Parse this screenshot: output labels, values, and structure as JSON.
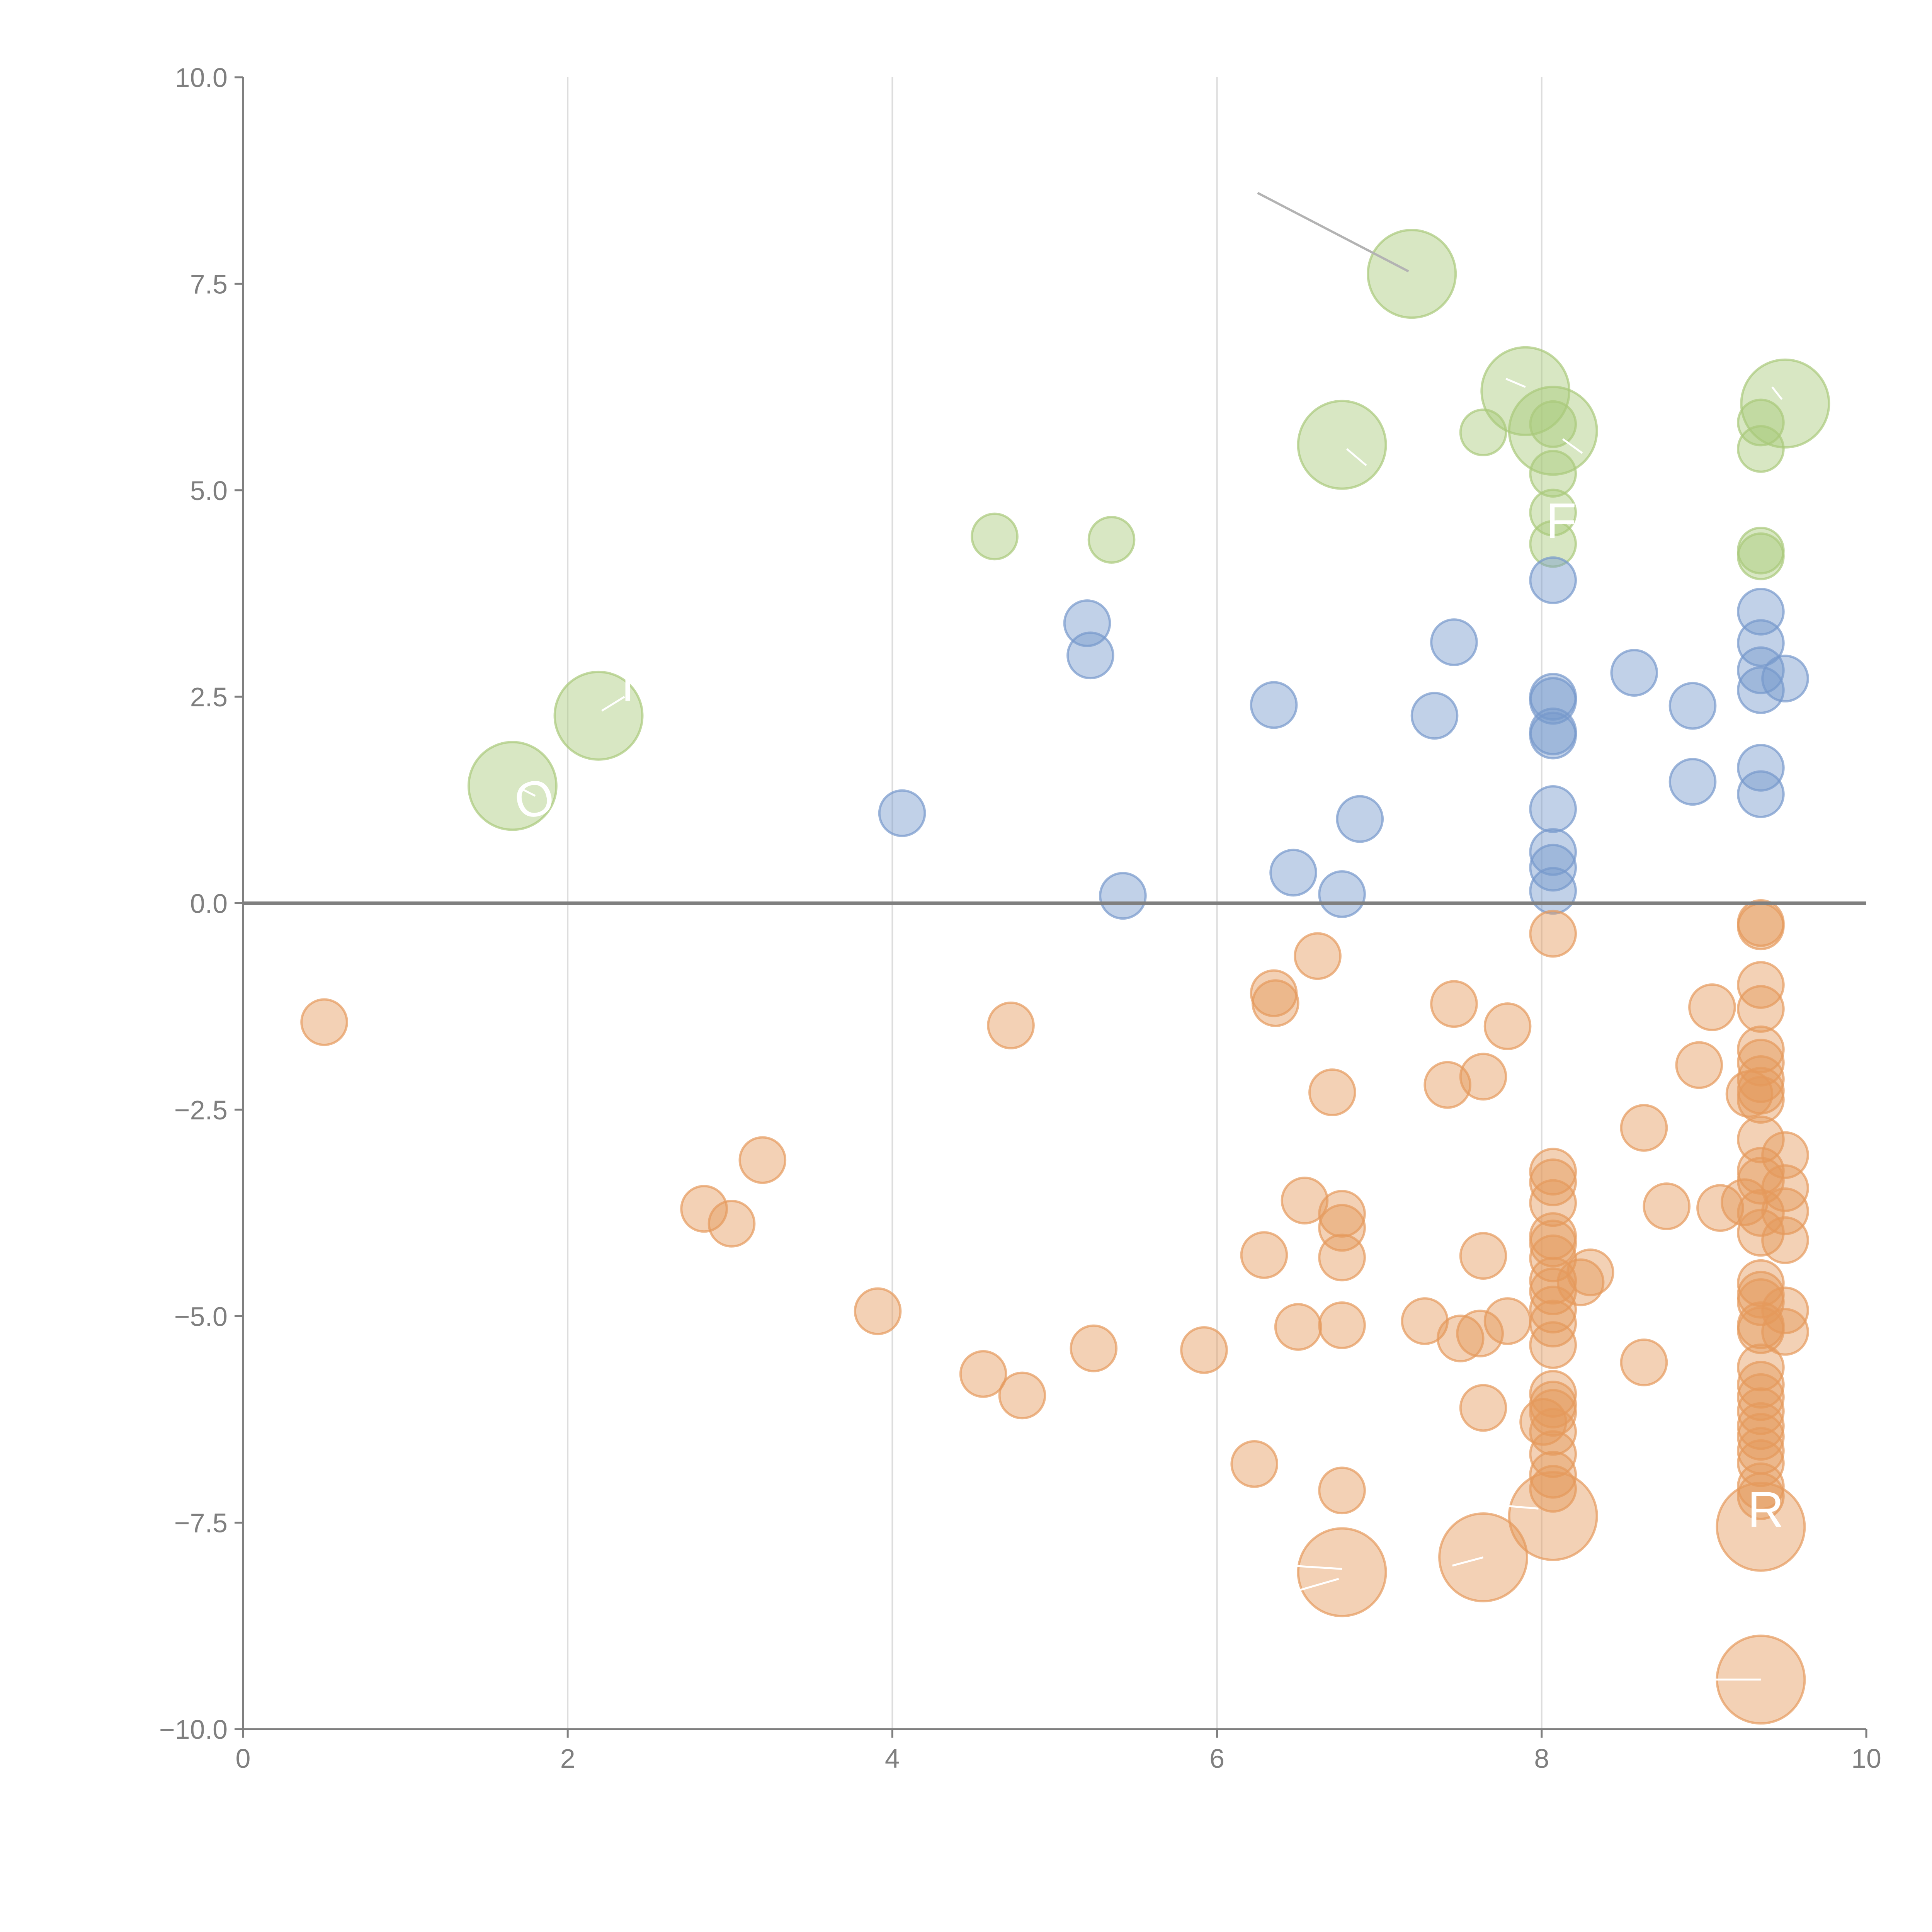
{
  "chart_data": {
    "type": "scatter",
    "title": "",
    "xlabel": "",
    "ylabel": "",
    "xlim": [
      0,
      10
    ],
    "ylim": [
      -10,
      10
    ],
    "grid": "vertical",
    "x_ticks": [
      0,
      2,
      4,
      6,
      8,
      10
    ],
    "x_tick_labels": [
      "0",
      "2",
      "4",
      "6",
      "8",
      "10"
    ],
    "y_ticks": [
      10,
      7.5,
      5,
      2.5,
      0,
      -2.5,
      -5,
      -7.5,
      -10
    ],
    "y_tick_labels": [
      "10.0",
      "7.5",
      "5.0",
      "2.5",
      "0.0",
      "−2.5",
      "−5.0",
      "−7.5",
      "−10.0"
    ],
    "colors": {
      "green": "#a9c97a",
      "blue": "#7699cc",
      "orange": "#e59a5c"
    },
    "series": [
      {
        "name": "green",
        "color": "#a9c97a",
        "points": [
          [
            1.66,
            1.42,
            0.27
          ],
          [
            2.19,
            2.27,
            0.27
          ],
          [
            7.2,
            7.62,
            0.27
          ],
          [
            7.9,
            6.2,
            0.27
          ],
          [
            8.07,
            5.72,
            0.27
          ],
          [
            6.77,
            5.55,
            0.27
          ],
          [
            9.5,
            6.05,
            0.27
          ],
          [
            4.63,
            4.44,
            0.14
          ],
          [
            5.35,
            4.4,
            0.14
          ],
          [
            7.64,
            5.7,
            0.14
          ],
          [
            8.07,
            5.8,
            0.14
          ],
          [
            8.07,
            5.2,
            0.14
          ],
          [
            8.07,
            4.73,
            0.14
          ],
          [
            8.07,
            4.35,
            0.14
          ],
          [
            9.35,
            5.82,
            0.14
          ],
          [
            9.35,
            5.5,
            0.14
          ],
          [
            9.35,
            4.27,
            0.14
          ],
          [
            9.35,
            4.2,
            0.14
          ]
        ]
      },
      {
        "name": "blue",
        "color": "#7699cc",
        "points": [
          [
            4.06,
            1.09,
            0.14
          ],
          [
            5.2,
            3.39,
            0.14
          ],
          [
            5.22,
            3.0,
            0.14
          ],
          [
            5.42,
            0.09,
            0.14
          ],
          [
            6.35,
            2.4,
            0.14
          ],
          [
            6.47,
            0.37,
            0.14
          ],
          [
            6.77,
            0.11,
            0.14
          ],
          [
            6.88,
            1.02,
            0.14
          ],
          [
            7.34,
            2.27,
            0.14
          ],
          [
            7.46,
            3.16,
            0.14
          ],
          [
            8.07,
            3.91,
            0.14
          ],
          [
            8.07,
            2.5,
            0.14
          ],
          [
            8.07,
            2.45,
            0.14
          ],
          [
            8.07,
            2.08,
            0.14
          ],
          [
            8.07,
            2.03,
            0.14
          ],
          [
            8.07,
            1.14,
            0.14
          ],
          [
            8.07,
            0.62,
            0.14
          ],
          [
            8.07,
            0.43,
            0.14
          ],
          [
            8.07,
            0.15,
            0.14
          ],
          [
            8.57,
            2.79,
            0.14
          ],
          [
            8.93,
            2.39,
            0.14
          ],
          [
            8.93,
            1.47,
            0.14
          ],
          [
            9.35,
            3.53,
            0.14
          ],
          [
            9.35,
            3.15,
            0.14
          ],
          [
            9.35,
            2.82,
            0.14
          ],
          [
            9.35,
            2.58,
            0.14
          ],
          [
            9.35,
            1.64,
            0.14
          ],
          [
            9.35,
            1.32,
            0.14
          ],
          [
            9.5,
            2.72,
            0.14
          ]
        ]
      },
      {
        "name": "orange",
        "color": "#e59a5c",
        "points": [
          [
            0.5,
            -1.44,
            0.14
          ],
          [
            2.84,
            -3.7,
            0.14
          ],
          [
            3.01,
            -3.88,
            0.14
          ],
          [
            3.2,
            -3.11,
            0.14
          ],
          [
            3.91,
            -4.94,
            0.14
          ],
          [
            4.56,
            -5.7,
            0.14
          ],
          [
            4.73,
            -1.48,
            0.14
          ],
          [
            4.8,
            -5.96,
            0.14
          ],
          [
            5.24,
            -5.39,
            0.14
          ],
          [
            5.92,
            -5.41,
            0.14
          ],
          [
            6.23,
            -6.79,
            0.14
          ],
          [
            6.29,
            -4.26,
            0.14
          ],
          [
            6.35,
            -1.09,
            0.14
          ],
          [
            6.36,
            -1.21,
            0.14
          ],
          [
            6.5,
            -5.13,
            0.14
          ],
          [
            6.54,
            -3.6,
            0.14
          ],
          [
            6.62,
            -0.64,
            0.14
          ],
          [
            6.71,
            -2.29,
            0.14
          ],
          [
            6.77,
            -3.76,
            0.14
          ],
          [
            6.77,
            -3.93,
            0.14
          ],
          [
            6.77,
            -4.29,
            0.14
          ],
          [
            6.77,
            -5.11,
            0.14
          ],
          [
            6.77,
            -7.11,
            0.14
          ],
          [
            6.77,
            -8.1,
            0.27
          ],
          [
            7.28,
            -5.06,
            0.14
          ],
          [
            7.42,
            -2.2,
            0.14
          ],
          [
            7.46,
            -1.22,
            0.14
          ],
          [
            7.5,
            -5.27,
            0.14
          ],
          [
            7.62,
            -5.21,
            0.14
          ],
          [
            7.64,
            -2.1,
            0.14
          ],
          [
            7.64,
            -4.27,
            0.14
          ],
          [
            7.64,
            -6.11,
            0.14
          ],
          [
            7.64,
            -7.92,
            0.27
          ],
          [
            7.79,
            -5.06,
            0.14
          ],
          [
            7.79,
            -1.49,
            0.14
          ],
          [
            8.01,
            -6.28,
            0.14
          ],
          [
            8.07,
            -0.37,
            0.14
          ],
          [
            8.07,
            -3.25,
            0.14
          ],
          [
            8.07,
            -3.38,
            0.14
          ],
          [
            8.07,
            -3.63,
            0.14
          ],
          [
            8.07,
            -4.03,
            0.14
          ],
          [
            8.07,
            -4.12,
            0.14
          ],
          [
            8.07,
            -4.3,
            0.14
          ],
          [
            8.07,
            -4.57,
            0.14
          ],
          [
            8.07,
            -4.7,
            0.14
          ],
          [
            8.07,
            -4.92,
            0.14
          ],
          [
            8.07,
            -5.09,
            0.14
          ],
          [
            8.07,
            -5.35,
            0.14
          ],
          [
            8.07,
            -5.94,
            0.14
          ],
          [
            8.07,
            -6.07,
            0.14
          ],
          [
            8.07,
            -6.17,
            0.14
          ],
          [
            8.07,
            -6.4,
            0.14
          ],
          [
            8.07,
            -6.67,
            0.14
          ],
          [
            8.07,
            -6.92,
            0.14
          ],
          [
            8.07,
            -7.09,
            0.14
          ],
          [
            8.07,
            -7.42,
            0.27
          ],
          [
            8.24,
            -4.59,
            0.14
          ],
          [
            8.3,
            -4.47,
            0.14
          ],
          [
            8.63,
            -2.72,
            0.14
          ],
          [
            8.63,
            -5.56,
            0.14
          ],
          [
            8.77,
            -3.67,
            0.14
          ],
          [
            8.97,
            -1.96,
            0.14
          ],
          [
            9.05,
            -1.26,
            0.14
          ],
          [
            9.1,
            -3.69,
            0.14
          ],
          [
            9.25,
            -3.62,
            0.14
          ],
          [
            9.28,
            -2.31,
            0.14
          ],
          [
            9.35,
            -0.24,
            0.14
          ],
          [
            9.35,
            -0.28,
            0.14
          ],
          [
            9.35,
            -0.99,
            0.14
          ],
          [
            9.35,
            -1.28,
            0.14
          ],
          [
            9.35,
            -1.77,
            0.14
          ],
          [
            9.35,
            -1.93,
            0.14
          ],
          [
            9.35,
            -2.13,
            0.14
          ],
          [
            9.35,
            -2.27,
            0.14
          ],
          [
            9.35,
            -2.38,
            0.14
          ],
          [
            9.35,
            -2.86,
            0.14
          ],
          [
            9.35,
            -3.24,
            0.14
          ],
          [
            9.35,
            -3.36,
            0.14
          ],
          [
            9.35,
            -3.75,
            0.14
          ],
          [
            9.35,
            -3.99,
            0.14
          ],
          [
            9.35,
            -4.6,
            0.14
          ],
          [
            9.35,
            -4.74,
            0.14
          ],
          [
            9.35,
            -4.83,
            0.14
          ],
          [
            9.35,
            -5.11,
            0.14
          ],
          [
            9.35,
            -5.17,
            0.14
          ],
          [
            9.35,
            -5.62,
            0.14
          ],
          [
            9.35,
            -5.83,
            0.14
          ],
          [
            9.35,
            -5.98,
            0.14
          ],
          [
            9.35,
            -6.15,
            0.14
          ],
          [
            9.35,
            -6.33,
            0.14
          ],
          [
            9.35,
            -6.46,
            0.14
          ],
          [
            9.35,
            -6.63,
            0.14
          ],
          [
            9.35,
            -6.78,
            0.14
          ],
          [
            9.35,
            -7.06,
            0.14
          ],
          [
            9.35,
            -7.18,
            0.14
          ],
          [
            9.35,
            -7.55,
            0.27
          ],
          [
            9.35,
            -9.4,
            0.27
          ],
          [
            9.5,
            -3.05,
            0.14
          ],
          [
            9.5,
            -3.45,
            0.14
          ],
          [
            9.5,
            -3.73,
            0.14
          ],
          [
            9.5,
            -4.08,
            0.14
          ],
          [
            9.5,
            -4.93,
            0.14
          ],
          [
            9.5,
            -5.19,
            0.14
          ]
        ]
      }
    ],
    "point_format": "[x, y, radius in data units of x]",
    "callouts": [
      [
        7.18,
        7.65,
        6.25,
        8.6,
        "dark"
      ],
      [
        1.72,
        1.38,
        1.8,
        1.3,
        "light"
      ],
      [
        2.21,
        2.33,
        2.35,
        2.5,
        "light"
      ],
      [
        7.9,
        6.25,
        7.78,
        6.35,
        "light"
      ],
      [
        8.13,
        5.62,
        8.25,
        5.45,
        "light"
      ],
      [
        6.8,
        5.5,
        6.92,
        5.3,
        "light"
      ],
      [
        9.48,
        6.1,
        9.42,
        6.25,
        "light"
      ],
      [
        6.77,
        -8.06,
        6.45,
        -8.02,
        "light"
      ],
      [
        6.75,
        -8.18,
        6.45,
        -8.35,
        "light"
      ],
      [
        7.64,
        -7.92,
        7.45,
        -8.02,
        "light"
      ],
      [
        7.98,
        -7.33,
        7.8,
        -7.3,
        "light"
      ],
      [
        9.35,
        -9.4,
        9.05,
        -9.4,
        "light"
      ]
    ],
    "labels": [
      {
        "text": "O",
        "x": 1.82,
        "y": 1.06,
        "rot": -14
      },
      {
        "text": "I",
        "x": 2.37,
        "y": 2.45,
        "rot": 0
      },
      {
        "text": "F",
        "x": 8.12,
        "y": 4.42,
        "rot": 0
      },
      {
        "text": "R",
        "x": 9.38,
        "y": -7.55,
        "rot": 0
      }
    ]
  }
}
